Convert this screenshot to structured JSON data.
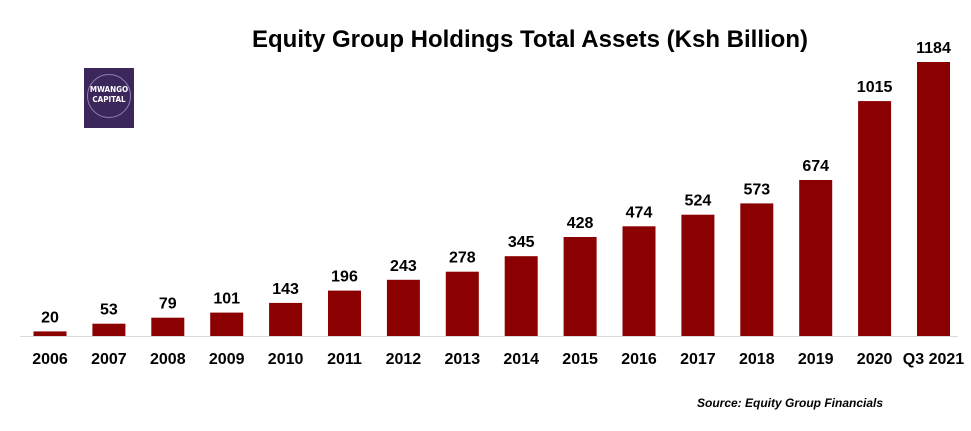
{
  "logo": {
    "line1": "MWANGO",
    "line2": "CAPITAL",
    "background": "#3b2759"
  },
  "source": "Source: Equity Group Financials",
  "chart_data": {
    "type": "bar",
    "title": "Equity Group Holdings Total Assets (Ksh Billion)",
    "xlabel": "",
    "ylabel": "",
    "categories": [
      "2006",
      "2007",
      "2008",
      "2009",
      "2010",
      "2011",
      "2012",
      "2013",
      "2014",
      "2015",
      "2016",
      "2017",
      "2018",
      "2019",
      "2020",
      "Q3 2021"
    ],
    "values": [
      20,
      53,
      79,
      101,
      143,
      196,
      243,
      278,
      345,
      428,
      474,
      524,
      573,
      674,
      1015,
      1184
    ],
    "ylim": [
      0,
      1184
    ],
    "bar_color": "#8b0000",
    "grid": false,
    "legend": "none"
  }
}
